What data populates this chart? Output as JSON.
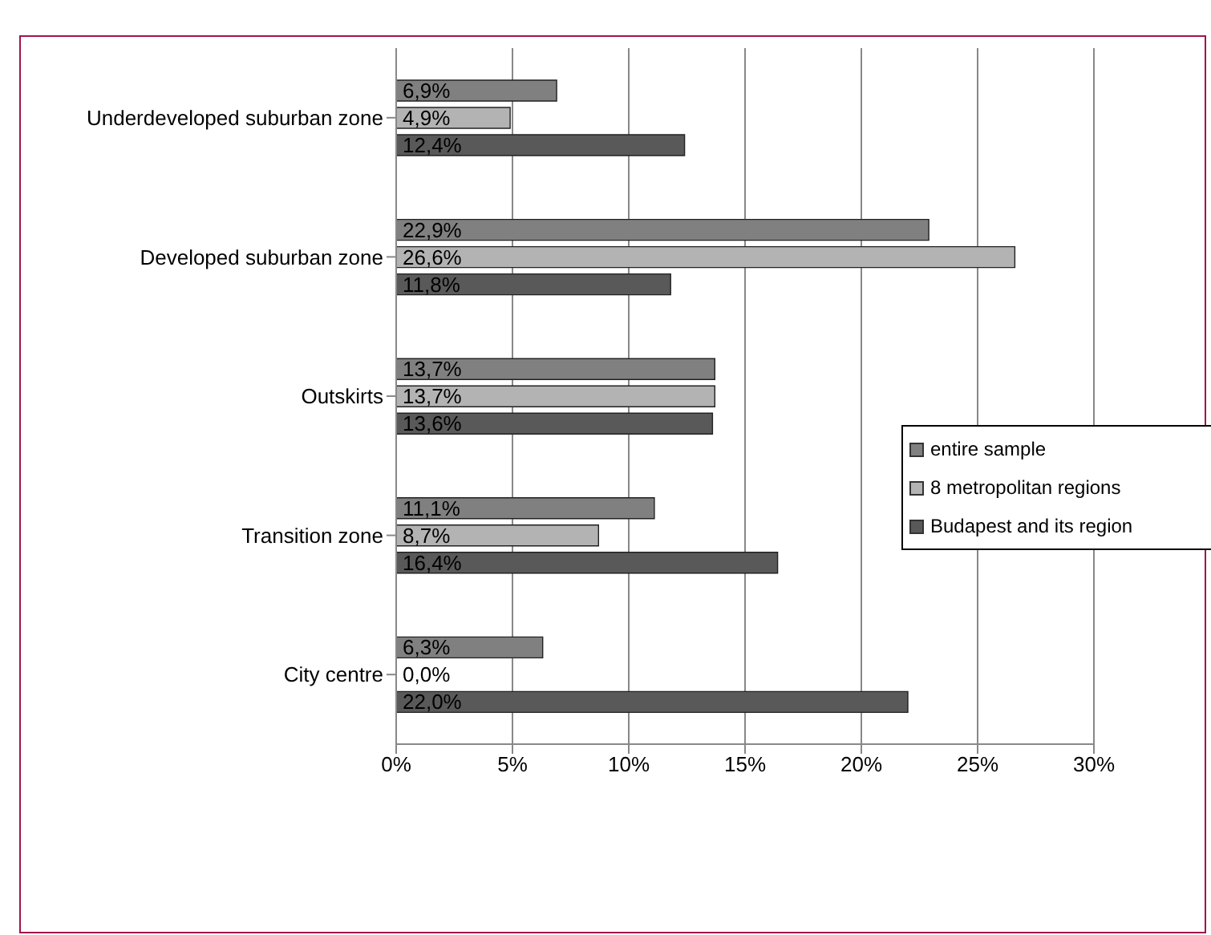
{
  "chart_data": {
    "type": "bar",
    "orientation": "horizontal",
    "categories": [
      "Underdeveloped suburban zone",
      "Developed suburban zone",
      "Outskirts",
      "Transition zone",
      "City centre"
    ],
    "series": [
      {
        "name": "entire sample",
        "color": "#808080",
        "values": [
          6.9,
          22.9,
          13.7,
          11.1,
          6.3
        ],
        "value_labels": [
          "6,9%",
          "22,9%",
          "13,7%",
          "11,1%",
          "6,3%"
        ]
      },
      {
        "name": "8 metropolitan regions",
        "color": "#b3b3b3",
        "values": [
          4.9,
          26.6,
          13.7,
          8.7,
          0.0
        ],
        "value_labels": [
          "4,9%",
          "26,6%",
          "13,7%",
          "8,7%",
          "0,0%"
        ]
      },
      {
        "name": "Budapest and its region",
        "color": "#595959",
        "values": [
          12.4,
          11.8,
          13.6,
          16.4,
          22.0
        ],
        "value_labels": [
          "12,4%",
          "11,8%",
          "13,6%",
          "16,4%",
          "22,0%"
        ]
      }
    ],
    "xlim": [
      0,
      30
    ],
    "xticks": [
      {
        "value": 0,
        "label": "0%"
      },
      {
        "value": 5,
        "label": "5%"
      },
      {
        "value": 10,
        "label": "10%"
      },
      {
        "value": 15,
        "label": "15%"
      },
      {
        "value": 20,
        "label": "20%"
      },
      {
        "value": 25,
        "label": "25%"
      },
      {
        "value": 30,
        "label": "30%"
      }
    ],
    "grid": "x",
    "legend": "right"
  }
}
